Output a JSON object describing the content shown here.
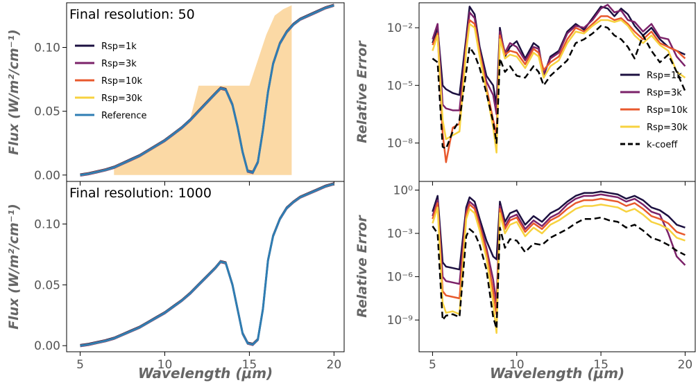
{
  "colors": {
    "R1k": "#1c1040",
    "R3k": "#7b2269",
    "R10k": "#e8592d",
    "R30k": "#f7d23f",
    "reference": "#2e7db3",
    "kcoeff": "#000000",
    "fill": "#fbd9a5"
  },
  "chart_data": [
    {
      "panel": "top-left",
      "type": "line",
      "annotation": "Final resolution: 50",
      "xlabel": "",
      "ylabel": "Flux (W/m²/cm⁻¹)",
      "xlim": [
        4.2,
        20.6
      ],
      "ylim": [
        -0.005,
        0.135
      ],
      "yticks": [
        "0.00",
        "0.05",
        "0.10"
      ],
      "ytick_values": [
        0.0,
        0.05,
        0.1
      ],
      "xtick_values": [
        5,
        10,
        15,
        20
      ],
      "xtick_labels": [
        "",
        "",
        "",
        ""
      ],
      "legend_position": "upper-left",
      "legend": [
        "Rsp=1k",
        "Rsp=3k",
        "Rsp=10k",
        "Rsp=30k",
        "Reference"
      ],
      "series_x": [
        5,
        5.5,
        6,
        6.5,
        7,
        7.5,
        8,
        8.5,
        9,
        9.5,
        10,
        10.5,
        11,
        11.5,
        12,
        12.5,
        13,
        13.3,
        13.6,
        14,
        14.3,
        14.6,
        14.9,
        15.2,
        15.5,
        15.8,
        16.1,
        16.4,
        16.8,
        17.2,
        17.6,
        18,
        18.5,
        19,
        19.5,
        20
      ],
      "series_y": [
        0.0,
        0.001,
        0.0025,
        0.004,
        0.006,
        0.009,
        0.012,
        0.015,
        0.019,
        0.023,
        0.027,
        0.032,
        0.037,
        0.043,
        0.05,
        0.057,
        0.064,
        0.068,
        0.067,
        0.055,
        0.038,
        0.018,
        0.003,
        0.002,
        0.01,
        0.035,
        0.065,
        0.087,
        0.103,
        0.112,
        0.118,
        0.122,
        0.125,
        0.128,
        0.131,
        0.133
      ],
      "fill_band": {
        "x": [
          7.0,
          7.5,
          8.0,
          8.5,
          9.0,
          9.5,
          10.0,
          10.5,
          11.0,
          11.5,
          12.0,
          12.5,
          13.0,
          13.5,
          14.0,
          14.5,
          15.0,
          15.5,
          16.0,
          16.5,
          17.0,
          17.5
        ],
        "lower": [
          0.0,
          0.0,
          0.0,
          0.0,
          0.0,
          0.0,
          0.0,
          0.0,
          0.0,
          0.0,
          0.0,
          0.0,
          0.0,
          0.0,
          0.0,
          0.0,
          0.0,
          0.0,
          0.0,
          0.0,
          0.0,
          0.0
        ],
        "upper": [
          0.006,
          0.009,
          0.012,
          0.016,
          0.019,
          0.024,
          0.028,
          0.032,
          0.038,
          0.044,
          0.07,
          0.07,
          0.07,
          0.07,
          0.07,
          0.07,
          0.07,
          0.09,
          0.11,
          0.125,
          0.13,
          0.133
        ]
      }
    },
    {
      "panel": "top-right",
      "type": "line",
      "xlabel": "",
      "ylabel": "Relative Error",
      "yscale": "log",
      "xlim": [
        4.2,
        20.6
      ],
      "ylim_log10": [
        -10,
        -0.7
      ],
      "yticks": [
        "10⁻²",
        "10⁻⁵",
        "10⁻⁸"
      ],
      "ytick_values_log10": [
        -2,
        -5,
        -8
      ],
      "xtick_values": [
        5,
        10,
        15,
        20
      ],
      "xtick_labels": [
        "",
        "",
        "",
        ""
      ],
      "legend_position": "lower-right",
      "legend": [
        "Rsp=1k",
        "Rsp=3k",
        "Rsp=10k",
        "Rsp=30k",
        "k-coeff"
      ],
      "x": [
        5.0,
        5.3,
        5.6,
        5.8,
        6.2,
        6.6,
        7.0,
        7.2,
        7.5,
        7.8,
        8.2,
        8.6,
        8.8,
        9.0,
        9.3,
        9.6,
        10.0,
        10.5,
        11.0,
        11.3,
        11.6,
        12.0,
        12.5,
        13.0,
        13.5,
        14.0,
        14.5,
        15.0,
        15.4,
        15.8,
        16.2,
        16.6,
        17.0,
        17.5,
        18.0,
        18.5,
        19.0,
        19.5,
        20.0
      ],
      "series": [
        {
          "name": "Rsp=1k",
          "log10_values": [
            -2.8,
            -2.0,
            -5.0,
            -5.2,
            -5.4,
            -5.5,
            -2.5,
            -0.9,
            -1.3,
            -3.0,
            -4.5,
            -5.0,
            -6.0,
            -2.0,
            -3.5,
            -3.0,
            -2.7,
            -3.6,
            -2.8,
            -3.0,
            -4.5,
            -3.5,
            -3.2,
            -2.2,
            -1.8,
            -2.1,
            -1.5,
            -0.9,
            -1.0,
            -1.4,
            -1.0,
            -1.3,
            -1.9,
            -2.4,
            -2.0,
            -2.6,
            -3.0,
            -3.2,
            -3.4
          ]
        },
        {
          "name": "Rsp=3k",
          "log10_values": [
            -2.6,
            -1.8,
            -6.0,
            -6.2,
            -6.3,
            -6.3,
            -2.8,
            -1.2,
            -1.5,
            -3.2,
            -4.8,
            -5.5,
            -6.5,
            -2.2,
            -3.3,
            -2.8,
            -3.0,
            -3.7,
            -3.0,
            -3.1,
            -4.4,
            -3.6,
            -3.3,
            -2.3,
            -1.9,
            -2.0,
            -1.6,
            -1.0,
            -0.8,
            -1.2,
            -1.1,
            -1.6,
            -1.7,
            -2.2,
            -1.8,
            -2.5,
            -2.6,
            -3.5,
            -4.0
          ]
        },
        {
          "name": "Rsp=10k",
          "log10_values": [
            -2.9,
            -2.3,
            -7.5,
            -9.0,
            -7.2,
            -7.0,
            -3.0,
            -1.6,
            -1.8,
            -3.3,
            -5.1,
            -6.8,
            -7.6,
            -2.4,
            -3.4,
            -3.2,
            -3.3,
            -3.9,
            -3.1,
            -3.3,
            -4.2,
            -3.8,
            -3.5,
            -2.6,
            -2.0,
            -2.2,
            -1.8,
            -1.4,
            -1.4,
            -1.6,
            -1.5,
            -1.8,
            -2.2,
            -2.6,
            -2.2,
            -2.8,
            -3.0,
            -3.2,
            -3.6
          ]
        },
        {
          "name": "Rsp=30k",
          "log10_values": [
            -3.2,
            -2.4,
            -6.8,
            -7.8,
            -7.6,
            -7.4,
            -3.2,
            -1.8,
            -2.0,
            -3.5,
            -5.3,
            -7.2,
            -8.5,
            -2.6,
            -3.6,
            -3.4,
            -3.5,
            -4.1,
            -3.3,
            -3.5,
            -4.6,
            -4.0,
            -3.7,
            -2.8,
            -2.2,
            -2.3,
            -1.9,
            -1.6,
            -1.6,
            -1.7,
            -1.6,
            -1.9,
            -2.4,
            -2.8,
            -2.4,
            -2.9,
            -3.2,
            -4.3,
            -4.6
          ]
        },
        {
          "name": "k-coeff",
          "log10_values": [
            -3.6,
            -3.8,
            -8.2,
            -8.3,
            -7.4,
            -6.8,
            -4.3,
            -3.0,
            -3.4,
            -4.1,
            -5.4,
            -6.9,
            -8.0,
            -3.6,
            -4.3,
            -4.0,
            -4.5,
            -4.6,
            -4.0,
            -4.3,
            -5.0,
            -4.5,
            -4.1,
            -3.7,
            -2.8,
            -2.6,
            -2.3,
            -1.9,
            -2.0,
            -2.4,
            -2.6,
            -3.0,
            -3.6,
            -2.4,
            -3.2,
            -3.8,
            -3.4,
            -4.3,
            -5.3
          ]
        }
      ]
    },
    {
      "panel": "bottom-left",
      "type": "line",
      "annotation": "Final resolution: 1000",
      "xlabel": "Wavelength (μm)",
      "ylabel": "Flux (W/m²/cm⁻¹)",
      "xlim": [
        4.2,
        20.6
      ],
      "ylim": [
        -0.005,
        0.135
      ],
      "yticks": [
        "0.00",
        "0.05",
        "0.10"
      ],
      "ytick_values": [
        0.0,
        0.05,
        0.1
      ],
      "xticks": [
        "5",
        "10",
        "15",
        "20"
      ],
      "xtick_values": [
        5,
        10,
        15,
        20
      ],
      "series_x": [
        5,
        5.5,
        6,
        6.5,
        7,
        7.5,
        8,
        8.5,
        9,
        9.5,
        10,
        10.5,
        11,
        11.5,
        12,
        12.5,
        13,
        13.3,
        13.6,
        14,
        14.3,
        14.6,
        14.9,
        15.2,
        15.5,
        15.8,
        16.1,
        16.4,
        16.8,
        17.2,
        17.6,
        18,
        18.5,
        19,
        19.5,
        20
      ],
      "series_y": [
        0.0,
        0.001,
        0.0025,
        0.004,
        0.006,
        0.009,
        0.012,
        0.015,
        0.019,
        0.023,
        0.027,
        0.032,
        0.037,
        0.043,
        0.05,
        0.057,
        0.064,
        0.069,
        0.068,
        0.05,
        0.03,
        0.01,
        0.002,
        0.001,
        0.005,
        0.03,
        0.07,
        0.09,
        0.104,
        0.113,
        0.118,
        0.122,
        0.125,
        0.128,
        0.131,
        0.133
      ]
    },
    {
      "panel": "bottom-right",
      "type": "line",
      "xlabel": "Wavelength (μm)",
      "ylabel": "Relative Error",
      "yscale": "log",
      "xlim": [
        4.2,
        20.6
      ],
      "ylim_log10": [
        -11.2,
        0.6
      ],
      "yticks": [
        "10⁰",
        "10⁻³",
        "10⁻⁶",
        "10⁻⁹"
      ],
      "ytick_values_log10": [
        0,
        -3,
        -6,
        -9
      ],
      "xticks": [
        "5",
        "10",
        "15",
        "20"
      ],
      "xtick_values": [
        5,
        10,
        15,
        20
      ],
      "x": [
        5.0,
        5.3,
        5.6,
        5.8,
        6.2,
        6.6,
        7.0,
        7.2,
        7.5,
        7.8,
        8.2,
        8.6,
        8.8,
        9.0,
        9.3,
        9.6,
        10.0,
        10.5,
        11.0,
        11.5,
        12.0,
        12.5,
        13.0,
        13.5,
        14.0,
        14.5,
        15.0,
        15.5,
        16.0,
        16.5,
        17.0,
        17.5,
        18.0,
        18.5,
        19.0,
        19.5,
        20.0
      ],
      "series": [
        {
          "name": "Rsp=1k",
          "log10_values": [
            -1.5,
            -0.4,
            -5.0,
            -5.3,
            -5.4,
            -5.5,
            -1.2,
            -0.5,
            -0.8,
            -2.0,
            -3.5,
            -4.6,
            -4.8,
            -0.8,
            -2.2,
            -1.6,
            -1.4,
            -2.4,
            -1.8,
            -2.2,
            -1.6,
            -1.3,
            -0.8,
            -0.4,
            -0.2,
            -0.2,
            -0.1,
            -0.2,
            -0.3,
            -0.6,
            -0.4,
            -0.7,
            -1.2,
            -1.4,
            -1.8,
            -2.4,
            -2.6
          ]
        },
        {
          "name": "Rsp=3k",
          "log10_values": [
            -1.8,
            -0.7,
            -6.0,
            -6.3,
            -6.4,
            -6.5,
            -1.5,
            -0.8,
            -1.1,
            -2.3,
            -4.0,
            -6.2,
            -7.8,
            -1.1,
            -2.5,
            -1.9,
            -1.7,
            -2.7,
            -2.1,
            -2.5,
            -1.9,
            -1.6,
            -1.0,
            -0.6,
            -0.4,
            -0.4,
            -0.3,
            -0.4,
            -0.5,
            -0.8,
            -0.6,
            -1.0,
            -1.5,
            -1.7,
            -3.0,
            -4.6,
            -5.2
          ]
        },
        {
          "name": "Rsp=10k",
          "log10_values": [
            -2.0,
            -0.9,
            -7.0,
            -7.3,
            -7.4,
            -7.5,
            -1.7,
            -1.0,
            -1.3,
            -2.5,
            -4.3,
            -7.0,
            -8.6,
            -1.3,
            -2.7,
            -2.1,
            -1.9,
            -2.9,
            -2.3,
            -2.7,
            -2.1,
            -1.8,
            -1.3,
            -0.9,
            -0.7,
            -0.7,
            -0.6,
            -0.7,
            -0.8,
            -1.1,
            -0.9,
            -1.3,
            -1.8,
            -2.0,
            -2.3,
            -2.9,
            -3.1
          ]
        },
        {
          "name": "Rsp=30k",
          "log10_values": [
            -2.3,
            -1.2,
            -7.8,
            -8.5,
            -8.4,
            -8.6,
            -2.0,
            -1.3,
            -1.6,
            -2.8,
            -4.7,
            -7.8,
            -9.9,
            -1.6,
            -3.0,
            -2.4,
            -2.2,
            -3.2,
            -2.6,
            -3.0,
            -2.4,
            -2.1,
            -1.7,
            -1.3,
            -1.1,
            -1.1,
            -1.0,
            -1.1,
            -1.2,
            -1.5,
            -1.3,
            -1.7,
            -2.2,
            -2.4,
            -2.7,
            -3.3,
            -3.5
          ]
        },
        {
          "name": "k-coeff",
          "log10_values": [
            -2.5,
            -3.0,
            -9.0,
            -8.7,
            -8.6,
            -8.8,
            -3.2,
            -2.7,
            -3.0,
            -3.8,
            -5.5,
            -8.8,
            -9.6,
            -2.6,
            -4.0,
            -3.4,
            -3.5,
            -4.3,
            -3.7,
            -3.8,
            -3.3,
            -3.0,
            -2.7,
            -2.3,
            -2.0,
            -2.0,
            -1.9,
            -2.1,
            -2.2,
            -2.6,
            -2.4,
            -2.8,
            -3.3,
            -3.5,
            -3.8,
            -4.2,
            -4.5
          ]
        }
      ]
    }
  ]
}
